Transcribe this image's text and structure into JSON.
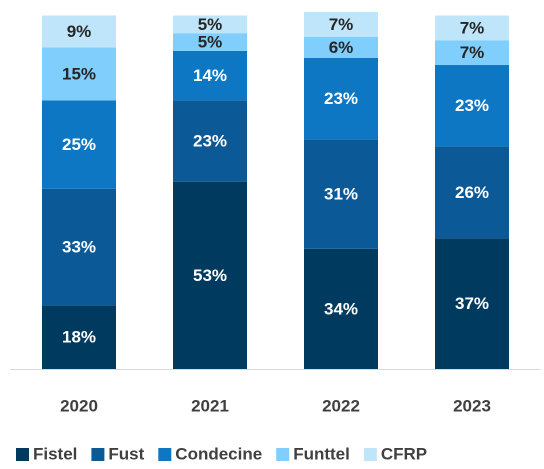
{
  "chart_data": {
    "type": "stacked_bar",
    "categories": [
      "2020",
      "2021",
      "2022",
      "2023"
    ],
    "series": [
      {
        "name": "Fistel",
        "color": "#003a5f",
        "values": [
          18,
          53,
          34,
          37
        ],
        "value_labels": [
          "18%",
          "53%",
          "34%",
          "37%"
        ]
      },
      {
        "name": "Fust",
        "color": "#0b5a97",
        "values": [
          33,
          23,
          31,
          26
        ],
        "value_labels": [
          "33%",
          "23%",
          "31%",
          "26%"
        ]
      },
      {
        "name": "Condecine",
        "color": "#0d77c4",
        "values": [
          25,
          14,
          23,
          23
        ],
        "value_labels": [
          "25%",
          "14%",
          "23%",
          "23%"
        ]
      },
      {
        "name": "Funttel",
        "color": "#7fcefb",
        "values": [
          15,
          5,
          6,
          7
        ],
        "value_labels": [
          "15%",
          "5%",
          "6%",
          "7%"
        ]
      },
      {
        "name": "CFRP",
        "color": "#bfe5fa",
        "values": [
          9,
          5,
          7,
          7
        ],
        "value_labels": [
          "9%",
          "5%",
          "7%",
          "7%"
        ]
      }
    ],
    "legend": "bottom"
  }
}
